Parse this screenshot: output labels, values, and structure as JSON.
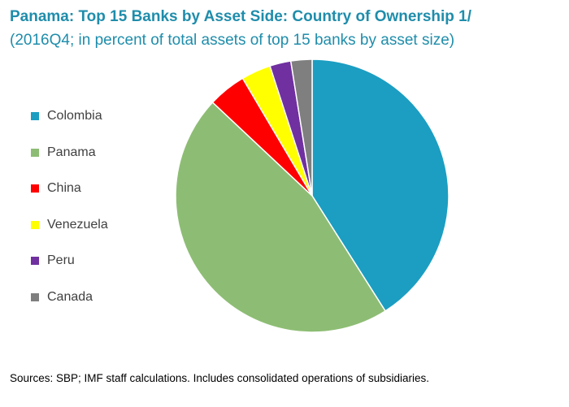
{
  "chart_data": {
    "type": "pie",
    "title": "Panama: Top 15 Banks by Asset Side: Country of Ownership 1/",
    "subtitle": "(2016Q4; in percent of total assets of top 15 banks by asset size)",
    "categories": [
      "Colombia",
      "Panama",
      "China",
      "Venezuela",
      "Peru",
      "Canada"
    ],
    "values": [
      41,
      46,
      4.5,
      3.5,
      2.5,
      2.5
    ],
    "colors": [
      "#1b9ec2",
      "#8dbd74",
      "#ff0000",
      "#ffff00",
      "#7030a0",
      "#7f7f7f"
    ],
    "legend_position": "left",
    "start_angle_deg": 0,
    "direction": "clockwise"
  },
  "footnote": "Sources: SBP; IMF staff calculations. Includes consolidated operations of subsidiaries."
}
